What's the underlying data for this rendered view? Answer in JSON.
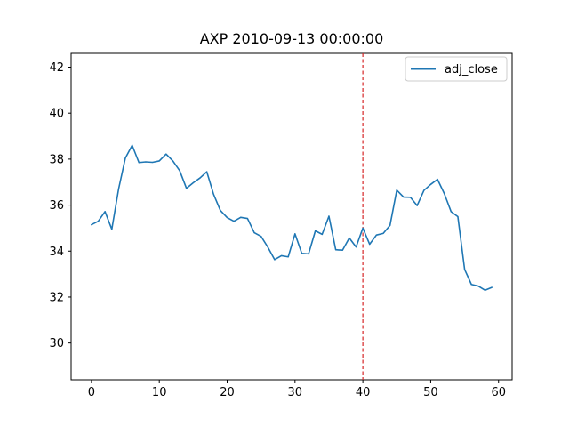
{
  "chart_data": {
    "type": "line",
    "title": "AXP 2010-09-13 00:00:00",
    "xlabel": "",
    "ylabel": "",
    "xlim": [
      -3,
      62
    ],
    "ylim": [
      28.4,
      42.6
    ],
    "xticks": [
      0,
      10,
      20,
      30,
      40,
      50,
      60
    ],
    "yticks": [
      30,
      32,
      34,
      36,
      38,
      40,
      42
    ],
    "grid": false,
    "legend_position": "top-right",
    "vline": {
      "x": 40,
      "color": "#d62728",
      "style": "dashed"
    },
    "series": [
      {
        "name": "adj_close",
        "color": "#1f77b4",
        "x": [
          0,
          1,
          2,
          3,
          4,
          5,
          6,
          7,
          8,
          9,
          10,
          11,
          12,
          13,
          14,
          15,
          16,
          17,
          18,
          19,
          20,
          21,
          22,
          23,
          24,
          25,
          26,
          27,
          28,
          29,
          30,
          31,
          32,
          33,
          34,
          35,
          36,
          37,
          38,
          39,
          40,
          41,
          42,
          43,
          44,
          45,
          46,
          47,
          48,
          49,
          50,
          51,
          52,
          53,
          54,
          55,
          56,
          57,
          58,
          59
        ],
        "values": [
          35.15,
          35.3,
          35.72,
          34.95,
          36.7,
          38.05,
          38.6,
          37.85,
          37.88,
          37.86,
          37.92,
          38.22,
          37.92,
          37.5,
          36.73,
          36.97,
          37.18,
          37.45,
          36.47,
          35.77,
          35.46,
          35.3,
          35.47,
          35.42,
          34.8,
          34.64,
          34.17,
          33.63,
          33.8,
          33.75,
          34.75,
          33.9,
          33.88,
          34.88,
          34.73,
          35.52,
          34.06,
          34.04,
          34.57,
          34.18,
          35.0,
          34.3,
          34.7,
          34.77,
          35.12,
          36.65,
          36.35,
          36.34,
          35.98,
          36.64,
          36.9,
          37.12,
          36.5,
          35.72,
          35.5,
          33.2,
          32.55,
          32.48,
          32.3,
          32.42
        ]
      }
    ]
  }
}
